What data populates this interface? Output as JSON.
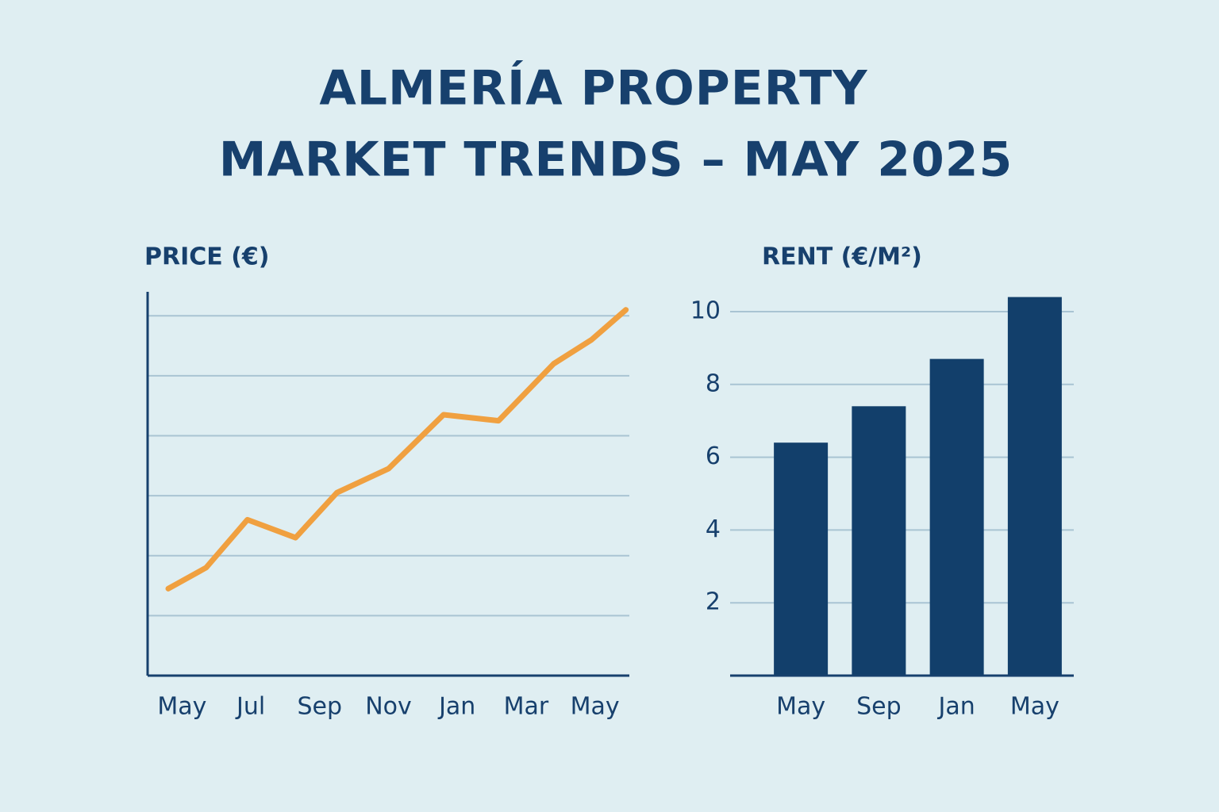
{
  "title": [
    "ALMERÍA PROPERTY",
    "MARKET TRENDS – MAY 2025"
  ],
  "chart_data": [
    {
      "type": "line",
      "title": "PRICE (€)",
      "color": "#f0a040",
      "x": [
        -0.4,
        0.7,
        1.9,
        3.3,
        4.5,
        6,
        7.6,
        9.2,
        10.8,
        11.9,
        12.9
      ],
      "values": [
        1.45,
        1.8,
        2.6,
        2.3,
        3.05,
        3.45,
        4.35,
        4.25,
        5.2,
        5.6,
        6.1
      ],
      "xlim": [
        -1,
        13
      ],
      "xticks": [
        {
          "value": 0,
          "label": "May"
        },
        {
          "value": 2,
          "label": "Jul"
        },
        {
          "value": 4,
          "label": "Sep"
        },
        {
          "value": 6,
          "label": "Nov"
        },
        {
          "value": 8,
          "label": "Jan"
        },
        {
          "value": 10,
          "label": "Mar"
        },
        {
          "value": 12,
          "label": "May"
        }
      ],
      "ylim": [
        0,
        6.4
      ],
      "yticks": [
        1,
        2,
        3,
        4,
        5,
        6
      ],
      "ytick_labels": false,
      "grid": true
    },
    {
      "type": "bar",
      "title": "RENT (€/M²)",
      "color": "#123f6b",
      "categories": [
        "May",
        "Sep",
        "Jan",
        "May"
      ],
      "values": [
        6.4,
        7.4,
        8.7,
        10.4
      ],
      "ylim": [
        0,
        10.5
      ],
      "yticks": [
        2,
        4,
        6,
        8,
        10
      ],
      "ytick_labels": true,
      "grid": true
    }
  ]
}
